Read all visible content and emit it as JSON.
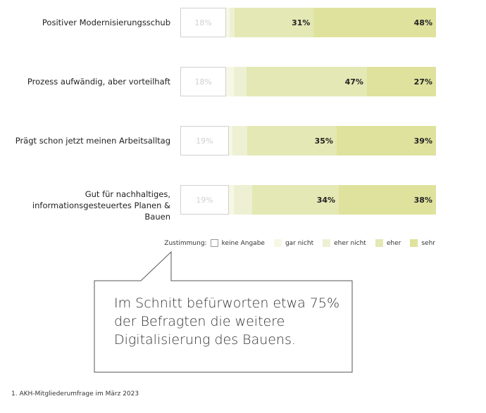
{
  "chart_data": {
    "type": "bar",
    "orientation": "horizontal-stacked-100",
    "categories": [
      "Positiver Modernisierungsschub",
      "Prozess aufwändig, aber vorteilhaft",
      "Prägt schon jetzt meinen Arbeitsalltag",
      "Gut für nachhaltiges, informationsgesteuertes Planen & Bauen"
    ],
    "series": [
      {
        "name": "keine Angabe",
        "color": "#ffffff",
        "values": [
          18,
          18,
          19,
          19
        ]
      },
      {
        "name": "gar nicht",
        "color": "#f7f7e6",
        "values": [
          1,
          3,
          1,
          2
        ]
      },
      {
        "name": "eher nicht",
        "color": "#eef0d3",
        "values": [
          2,
          5,
          6,
          7
        ]
      },
      {
        "name": "eher",
        "color": "#e4e8b4",
        "values": [
          31,
          47,
          35,
          34
        ]
      },
      {
        "name": "sehr",
        "color": "#dfe29c",
        "values": [
          48,
          27,
          39,
          38
        ]
      }
    ],
    "shown_labels": {
      "keine Angabe": [
        "18%",
        "18%",
        "19%",
        "19%"
      ],
      "eher": [
        "31%",
        "47%",
        "35%",
        "34%"
      ],
      "sehr": [
        "48%",
        "27%",
        "39%",
        "38%"
      ]
    },
    "legend_title": "Zustimmung:",
    "legend_position": "bottom-right"
  },
  "callout": "Im Schnitt befürworten etwa 75% der Befragten die weitere Digitalisierung des Bauens.",
  "footnote": "1. AKH-Mitgliederumfrage im März 2023"
}
